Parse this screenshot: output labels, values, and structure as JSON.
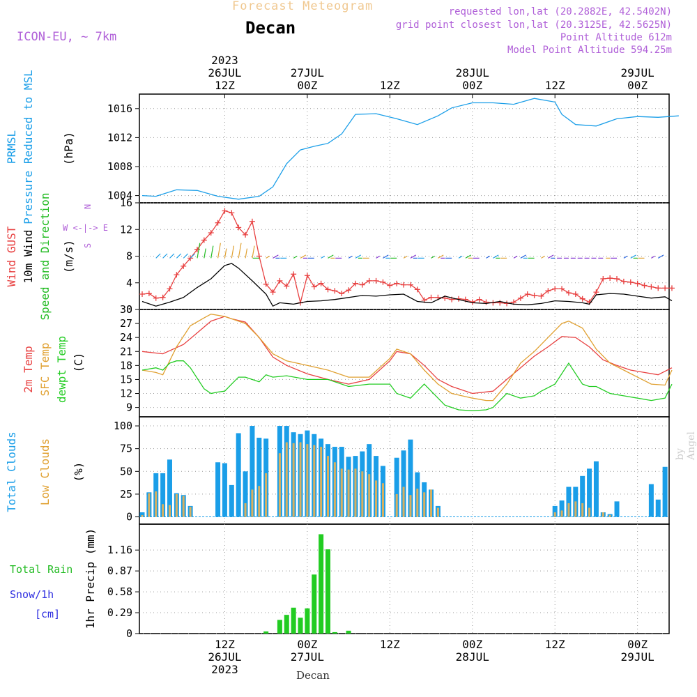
{
  "header": {
    "title": "Forecast Meteogram",
    "station": "Decan",
    "model": "ICON-EU, ~ 7km",
    "requested": "requested lon,lat (20.2882E, 42.5402N)",
    "gridpoint": "grid point closest lon,lat (20.3125E, 42.5625N)",
    "point_altitude": "Point Altitude 612m",
    "model_altitude": "Model Point Altitude 594.25m"
  },
  "footer": {
    "station": "Decan",
    "watermark": "by Angel"
  },
  "colors": {
    "pressure": "#1a9ee8",
    "gust": "#e84040",
    "wind": "#000000",
    "direction": "#22bb22",
    "t2m": "#e84040",
    "tsfc": "#e0a030",
    "dewpt": "#22cc22",
    "total_clouds": "#1a9ee8",
    "low_clouds": "#d8b060",
    "rain": "#22cc22",
    "snow": "#3030e0",
    "compass": "#b060d8"
  },
  "time_axis": {
    "top_labels": [
      {
        "h": 12,
        "l1": "2023",
        "l2": "26JUL",
        "l3": "12Z"
      },
      {
        "h": 24,
        "l1": "",
        "l2": "27JUL",
        "l3": "00Z"
      },
      {
        "h": 36,
        "l1": "",
        "l2": "",
        "l3": "12Z"
      },
      {
        "h": 48,
        "l1": "",
        "l2": "28JUL",
        "l3": "00Z"
      },
      {
        "h": 60,
        "l1": "",
        "l2": "",
        "l3": "12Z"
      },
      {
        "h": 72,
        "l1": "",
        "l2": "29JUL",
        "l3": "00Z"
      }
    ],
    "bottom_labels": [
      {
        "h": 12,
        "l1": "12Z",
        "l2": "26JUL",
        "l3": "2023"
      },
      {
        "h": 24,
        "l1": "00Z",
        "l2": "27JUL",
        "l3": ""
      },
      {
        "h": 36,
        "l1": "12Z",
        "l2": "",
        "l3": ""
      },
      {
        "h": 48,
        "l1": "00Z",
        "l2": "28JUL",
        "l3": ""
      },
      {
        "h": 60,
        "l1": "12Z",
        "l2": "",
        "l3": ""
      },
      {
        "h": 72,
        "l1": "00Z",
        "l2": "29JUL",
        "l3": ""
      }
    ]
  },
  "chart_data": [
    {
      "type": "line",
      "labels": [
        "PRMSL",
        "Pressure Reduced to MSL",
        "(hPa)"
      ],
      "ylim": [
        1003,
        1018
      ],
      "yticks": [
        1004,
        1008,
        1012,
        1016
      ],
      "series": [
        {
          "name": "PRMSL",
          "x": [
            0,
            2,
            5,
            8,
            11,
            14,
            17,
            19,
            21,
            23,
            25,
            27,
            29,
            31,
            34,
            37,
            40,
            43,
            45,
            48,
            51,
            54,
            57,
            60,
            61,
            63,
            66,
            69,
            72,
            75,
            78
          ],
          "values": [
            1004.0,
            1003.9,
            1004.8,
            1004.7,
            1003.9,
            1003.5,
            1003.9,
            1005.2,
            1008.4,
            1010.3,
            1010.8,
            1011.2,
            1012.5,
            1015.2,
            1015.3,
            1014.6,
            1013.8,
            1015.0,
            1016.1,
            1016.8,
            1016.8,
            1016.6,
            1017.4,
            1016.9,
            1015.2,
            1013.8,
            1013.6,
            1014.6,
            1014.9,
            1014.8,
            1015.0
          ]
        }
      ]
    },
    {
      "type": "line",
      "labels": [
        "Wind GUST",
        "10m Wind",
        "Speed and Direction",
        "(m/s)"
      ],
      "compass": [
        "N",
        "W <-|-> E",
        "S"
      ],
      "ylim": [
        0,
        16
      ],
      "yticks": [
        0,
        4,
        8,
        12,
        16
      ],
      "series": [
        {
          "name": "Wind GUST",
          "x": [
            0,
            1,
            2,
            3,
            4,
            5,
            6,
            7,
            8,
            9,
            10,
            11,
            12,
            13,
            14,
            15,
            16,
            17,
            18,
            19,
            20,
            21,
            22,
            23,
            24,
            25,
            26,
            27,
            28,
            29,
            30,
            31,
            32,
            33,
            34,
            35,
            36,
            37,
            38,
            39,
            40,
            41,
            42,
            43,
            44,
            45,
            46,
            47,
            48,
            49,
            50,
            51,
            52,
            53,
            54,
            55,
            56,
            57,
            58,
            59,
            60,
            61,
            62,
            63,
            64,
            65,
            66,
            67,
            68,
            69,
            70,
            71,
            72,
            73,
            74,
            75,
            76,
            77
          ],
          "values": [
            2.3,
            2.4,
            1.7,
            1.8,
            3.1,
            5.2,
            6.5,
            7.7,
            9.0,
            10.4,
            11.5,
            13.0,
            14.8,
            14.5,
            12.3,
            11.2,
            13.2,
            8.0,
            3.8,
            2.6,
            4.3,
            3.5,
            5.3,
            1.0,
            5.1,
            3.4,
            3.9,
            3.0,
            2.8,
            2.4,
            2.9,
            3.9,
            3.7,
            4.3,
            4.3,
            4.1,
            3.6,
            3.9,
            3.7,
            3.7,
            3.0,
            1.4,
            1.8,
            1.8,
            1.7,
            1.5,
            1.6,
            1.5,
            1.1,
            1.5,
            1.1,
            1.0,
            1.0,
            0.9,
            1.1,
            1.7,
            2.3,
            2.1,
            2.0,
            2.8,
            3.1,
            3.1,
            2.5,
            2.3,
            1.6,
            1.1,
            2.6,
            4.6,
            4.7,
            4.6,
            4.2,
            4.1,
            3.9,
            3.6,
            3.4,
            3.2,
            3.2,
            3.2
          ]
        },
        {
          "name": "10m Wind",
          "x": [
            0,
            2,
            4,
            6,
            8,
            10,
            12,
            13,
            14,
            16,
            18,
            19,
            20,
            22,
            24,
            26,
            28,
            30,
            32,
            34,
            36,
            38,
            40,
            42,
            44,
            46,
            48,
            50,
            52,
            54,
            56,
            58,
            60,
            62,
            64,
            65,
            66,
            68,
            70,
            72,
            74,
            76,
            77
          ],
          "values": [
            1.2,
            0.5,
            1.1,
            1.8,
            3.3,
            4.6,
            6.6,
            6.9,
            6.2,
            4.3,
            2.3,
            0.5,
            1.0,
            0.8,
            1.2,
            1.3,
            1.5,
            1.8,
            2.1,
            2.0,
            2.2,
            2.3,
            1.2,
            1.0,
            2.0,
            1.5,
            1.0,
            0.9,
            1.2,
            0.8,
            0.7,
            0.9,
            1.3,
            1.2,
            1.0,
            0.8,
            2.2,
            2.4,
            2.3,
            2.0,
            1.7,
            1.9,
            1.3
          ]
        }
      ]
    },
    {
      "type": "line",
      "labels": [
        "2m Temp",
        "SFC Temp",
        "dewpt Temp",
        "(C)"
      ],
      "ylim": [
        7,
        30
      ],
      "yticks": [
        9,
        12,
        15,
        18,
        21,
        24,
        27,
        30
      ],
      "series": [
        {
          "name": "2m Temp",
          "x": [
            0,
            3,
            6,
            8,
            10,
            12,
            13,
            15,
            17,
            19,
            21,
            24,
            27,
            30,
            33,
            36,
            37,
            39,
            41,
            43,
            45,
            48,
            51,
            53,
            55,
            57,
            59,
            61,
            63,
            65,
            67,
            69,
            71,
            73,
            75,
            77
          ],
          "values": [
            21,
            20.5,
            22.5,
            25,
            27.5,
            28.5,
            28,
            27.3,
            24,
            19.8,
            18,
            16.2,
            15,
            14,
            15,
            19,
            21,
            20.5,
            18,
            15,
            13.5,
            12,
            12.5,
            15,
            17.5,
            20,
            22,
            24.2,
            24,
            22,
            19.2,
            18,
            17,
            16.5,
            16,
            17.5
          ]
        },
        {
          "name": "SFC Temp",
          "x": [
            0,
            2,
            3,
            5,
            7,
            9,
            10,
            12,
            13,
            15,
            17,
            19,
            21,
            24,
            27,
            30,
            33,
            36,
            37,
            39,
            41,
            43,
            45,
            48,
            50,
            51,
            53,
            55,
            57,
            59,
            61,
            62,
            64,
            66,
            68,
            70,
            72,
            74,
            76,
            77
          ],
          "values": [
            17,
            16.5,
            16,
            22,
            26.5,
            28.2,
            29,
            28.5,
            28,
            27,
            24,
            20.5,
            19,
            18,
            17,
            15.5,
            15.5,
            19.5,
            21.5,
            20.5,
            17,
            14,
            12,
            11,
            10.5,
            10.5,
            14,
            18.5,
            21,
            24,
            27,
            27.5,
            26,
            21.5,
            18.5,
            17,
            15.5,
            14,
            13.8,
            17
          ]
        },
        {
          "name": "dewpt Temp",
          "x": [
            0,
            2,
            3,
            4,
            5,
            6,
            7,
            9,
            10,
            11,
            12,
            13,
            14,
            15,
            17,
            18,
            19,
            21,
            24,
            27,
            30,
            33,
            36,
            37,
            39,
            41,
            43,
            44,
            46,
            48,
            50,
            51,
            53,
            55,
            57,
            58,
            60,
            62,
            64,
            65,
            66,
            68,
            70,
            72,
            74,
            76,
            77
          ],
          "values": [
            17,
            17.5,
            17,
            18.5,
            19,
            19,
            17.5,
            13,
            12,
            12.3,
            12.5,
            14,
            15.5,
            15.5,
            14.5,
            16,
            15.5,
            15.8,
            15,
            15,
            13.5,
            14,
            14,
            12,
            11,
            14,
            11,
            9.5,
            8.5,
            8.3,
            8.5,
            9,
            12,
            11,
            11.5,
            12.5,
            14,
            18.5,
            14,
            13.5,
            13.5,
            12,
            11.5,
            11,
            10.5,
            11,
            14
          ]
        }
      ]
    },
    {
      "type": "bar",
      "labels": [
        "Total Clouds",
        "Low Clouds",
        "(%)"
      ],
      "ylim": [
        -8,
        110
      ],
      "yticks": [
        0,
        25,
        50,
        75,
        100
      ],
      "series": [
        {
          "name": "Total Clouds",
          "x": [
            0,
            1,
            2,
            3,
            4,
            5,
            6,
            7,
            8,
            9,
            10,
            11,
            12,
            13,
            14,
            15,
            16,
            17,
            18,
            19,
            20,
            21,
            22,
            23,
            24,
            25,
            26,
            27,
            28,
            29,
            30,
            31,
            32,
            33,
            34,
            35,
            36,
            37,
            38,
            39,
            40,
            41,
            42,
            43,
            44,
            45,
            46,
            47,
            48,
            49,
            50,
            51,
            52,
            53,
            54,
            55,
            56,
            57,
            58,
            59,
            60,
            61,
            62,
            63,
            64,
            65,
            66,
            67,
            68,
            69,
            70,
            71,
            72,
            73,
            74,
            75,
            76,
            77
          ],
          "values": [
            5,
            27,
            48,
            48,
            63,
            26,
            24,
            12,
            0,
            0,
            0,
            60,
            59,
            35,
            92,
            50,
            100,
            87,
            86,
            0,
            100,
            100,
            93,
            91,
            95,
            91,
            86,
            80,
            77,
            77,
            66,
            67,
            72,
            80,
            67,
            56,
            0,
            65,
            73,
            85,
            49,
            38,
            30,
            12,
            0,
            0,
            0,
            0,
            0,
            0,
            0,
            0,
            0,
            0,
            0,
            0,
            0,
            0,
            0,
            0,
            12,
            18,
            33,
            33,
            45,
            53,
            61,
            5,
            3,
            17,
            0,
            0,
            0,
            0,
            36,
            19,
            55,
            0
          ]
        },
        {
          "name": "Low Clouds",
          "x": [
            0,
            1,
            2,
            3,
            4,
            5,
            6,
            7,
            8,
            9,
            10,
            11,
            12,
            13,
            14,
            15,
            16,
            17,
            18,
            19,
            20,
            21,
            22,
            23,
            24,
            25,
            26,
            27,
            28,
            29,
            30,
            31,
            32,
            33,
            34,
            35,
            36,
            37,
            38,
            39,
            40,
            41,
            42,
            43,
            44,
            45,
            46,
            47,
            48,
            49,
            50,
            51,
            52,
            53,
            54,
            55,
            56,
            57,
            58,
            59,
            60,
            61,
            62,
            63,
            64,
            65,
            66,
            67,
            68,
            69,
            70,
            71,
            72,
            73,
            74,
            75,
            76,
            77
          ],
          "values": [
            2,
            26,
            28,
            14,
            13,
            25,
            23,
            11,
            0,
            0,
            0,
            0,
            0,
            0,
            0,
            15,
            30,
            34,
            48,
            0,
            70,
            82,
            81,
            82,
            80,
            79,
            77,
            67,
            60,
            53,
            52,
            53,
            50,
            47,
            40,
            37,
            0,
            25,
            33,
            24,
            31,
            27,
            30,
            10,
            0,
            0,
            0,
            0,
            0,
            0,
            0,
            0,
            0,
            0,
            0,
            0,
            0,
            0,
            0,
            0,
            5,
            7,
            15,
            17,
            15,
            10,
            0,
            5,
            2,
            0,
            0,
            0,
            0,
            0,
            0,
            0,
            0,
            0
          ]
        }
      ]
    },
    {
      "type": "bar",
      "labels": [
        "1hr Precip (mm)"
      ],
      "legend_labels": [
        "Total Rain",
        "Snow/1h",
        "[cm]"
      ],
      "ylim": [
        0,
        1.52
      ],
      "yticks": [
        0,
        0.29,
        0.58,
        0.87,
        1.16
      ],
      "series": [
        {
          "name": "Total Rain",
          "x": [
            18,
            20,
            21,
            22,
            23,
            24,
            25,
            26,
            27,
            28,
            30
          ],
          "values": [
            0.03,
            0.19,
            0.26,
            0.36,
            0.22,
            0.35,
            0.82,
            1.38,
            1.17,
            0.02,
            0.04
          ]
        }
      ]
    }
  ]
}
